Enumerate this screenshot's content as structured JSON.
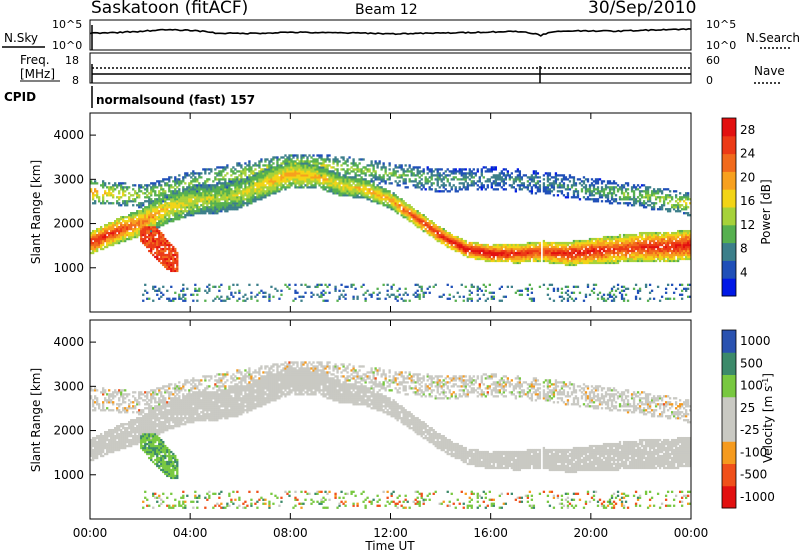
{
  "header": {
    "station": "Saskatoon (fitACF)",
    "beam": "Beam 12",
    "date": "30/Sep/2010"
  },
  "panels": {
    "nsky_label": "N.Sky",
    "nsearch_label": "N.Search",
    "nsky_ticks": [
      "10^5",
      "10^0"
    ],
    "nsearch_ticks": [
      "10^5",
      "10^0"
    ],
    "freq_label_line1": "Freq.",
    "freq_label_line2": "[MHz]",
    "freq_ticks": [
      "18",
      "8"
    ],
    "nave_label": "Nave",
    "nave_ticks": [
      "60",
      "0"
    ],
    "cpid_label": "CPID",
    "cpid_text": "normalsound (fast) 157"
  },
  "colors": {
    "power_scale": [
      "#0018e6",
      "#1f4fb8",
      "#3c7f8a",
      "#56b04f",
      "#a6d23a",
      "#f2d416",
      "#f7a01e",
      "#f16a1c",
      "#ec3a16",
      "#e21010"
    ],
    "velocity_scale": [
      "#e21010",
      "#f0501a",
      "#f59a1e",
      "#c9c9c3",
      "#c9c9c3",
      "#78c840",
      "#3c8a6a",
      "#2a52b0"
    ],
    "background": "#ffffff",
    "ground_scatter": "#c8c8c0"
  },
  "chart_data": [
    {
      "type": "heatmap",
      "title": "Power",
      "ylabel": "Slant Range [km]",
      "xlabel": "",
      "xlim": [
        0,
        24
      ],
      "ylim": [
        0,
        4500
      ],
      "yticks": [
        1000,
        2000,
        3000,
        4000
      ],
      "xticks": [
        "00:00",
        "04:00",
        "08:00",
        "12:00",
        "16:00",
        "20:00",
        "00:00"
      ],
      "colorbar_label": "Power [dB]",
      "colorbar_ticks": [
        "28",
        "24",
        "20",
        "16",
        "12",
        "8",
        "4"
      ],
      "colorbar_range": [
        0,
        30
      ],
      "bands": [
        {
          "name": "main",
          "t": [
            0,
            1,
            2,
            3,
            4,
            5,
            6,
            7,
            8,
            9,
            10,
            11,
            12,
            13,
            14,
            15,
            16,
            17,
            18,
            19,
            20,
            21,
            22,
            23,
            24
          ],
          "center": [
            1550,
            1800,
            2000,
            2300,
            2500,
            2550,
            2650,
            2900,
            3100,
            3050,
            2850,
            2750,
            2500,
            2100,
            1700,
            1400,
            1300,
            1300,
            1350,
            1300,
            1350,
            1400,
            1450,
            1450,
            1500
          ],
          "peak_power": [
            28,
            26,
            22,
            18,
            16,
            14,
            15,
            18,
            20,
            18,
            17,
            18,
            20,
            26,
            28,
            30,
            30,
            28,
            26,
            28,
            28,
            26,
            27,
            28,
            28
          ]
        },
        {
          "name": "upper",
          "t": [
            0,
            2,
            4,
            6,
            8,
            10,
            12,
            14,
            16,
            18,
            20,
            22,
            24
          ],
          "center": [
            2700,
            2600,
            2900,
            3100,
            3300,
            3250,
            3100,
            2950,
            3000,
            2900,
            2750,
            2600,
            2400
          ],
          "peak_power": [
            20,
            14,
            12,
            14,
            16,
            14,
            12,
            10,
            8,
            8,
            10,
            12,
            16
          ]
        }
      ],
      "near_range_clutter": [
        200,
        600
      ]
    },
    {
      "type": "heatmap",
      "title": "Velocity",
      "ylabel": "Slant Range [km]",
      "xlabel": "Time UT",
      "xlim": [
        0,
        24
      ],
      "ylim": [
        0,
        4500
      ],
      "yticks": [
        1000,
        2000,
        3000,
        4000
      ],
      "xticks": [
        "00:00",
        "04:00",
        "08:00",
        "12:00",
        "16:00",
        "20:00",
        "00:00"
      ],
      "colorbar_label": "Velocity [m s^-1]",
      "colorbar_ticks": [
        "1000",
        "500",
        "100",
        "25",
        "-25",
        "-100",
        "-500",
        "-1000"
      ],
      "colorbar_range": [
        -1000,
        1000
      ],
      "ground_scatter_bands": "same as power panel main band",
      "ionospheric_echo": {
        "t": [
          2.0,
          3.5
        ],
        "range": [
          900,
          1900
        ],
        "velocity": 300
      }
    }
  ],
  "time_series": {
    "nsky": [
      3000,
      4000,
      8000,
      20000,
      15000,
      3000,
      2500,
      3000,
      5000,
      4000,
      3500,
      3000,
      2000,
      2500,
      3000,
      4000,
      6000,
      8000,
      500,
      10000,
      12000,
      9000,
      15000,
      25000,
      30000
    ],
    "freq_mhz": 10.3,
    "nave": 10
  }
}
